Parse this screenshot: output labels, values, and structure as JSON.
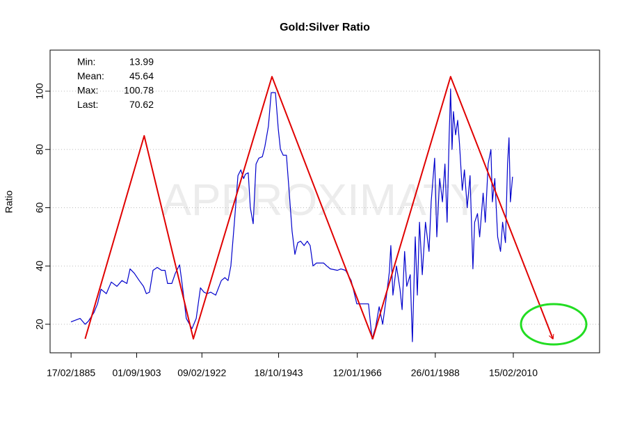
{
  "chart_data": {
    "type": "line",
    "title": "Gold:Silver Ratio",
    "ylabel": "Ratio",
    "watermark": "APPROXIMATY",
    "stats": [
      {
        "label": "Min:",
        "value": 13.99
      },
      {
        "label": "Mean:",
        "value": 45.64
      },
      {
        "label": "Max:",
        "value": 100.78
      },
      {
        "label": "Last:",
        "value": 70.62
      }
    ],
    "xlim": [
      1879.2,
      2034.5
    ],
    "ylim": [
      10.2,
      114.1
    ],
    "xticks": [
      {
        "value": 1885.13,
        "label": "17/02/1885"
      },
      {
        "value": 1903.67,
        "label": "01/09/1903"
      },
      {
        "value": 1922.11,
        "label": "09/02/1922"
      },
      {
        "value": 1943.79,
        "label": "18/10/1943"
      },
      {
        "value": 1966.03,
        "label": "12/01/1966"
      },
      {
        "value": 1988.07,
        "label": "26/01/1988"
      },
      {
        "value": 2010.12,
        "label": "15/02/2010"
      }
    ],
    "yticks": [
      20,
      40,
      60,
      80,
      100
    ],
    "grid": true,
    "series": [
      {
        "color": "#0000cc",
        "x": [
          1885.1,
          1887.7,
          1889.1,
          1890.0,
          1891.6,
          1892.6,
          1893.6,
          1895.1,
          1896.5,
          1898.1,
          1899.5,
          1900.9,
          1901.8,
          1903.0,
          1904.4,
          1905.6,
          1906.4,
          1907.3,
          1908.3,
          1909.5,
          1910.7,
          1911.7,
          1912.4,
          1913.6,
          1914.6,
          1915.8,
          1916.6,
          1917.7,
          1919.3,
          1920.5,
          1921.7,
          1922.7,
          1923.6,
          1924.6,
          1926.0,
          1927.6,
          1928.6,
          1929.5,
          1930.3,
          1931.3,
          1932.3,
          1933.1,
          1933.9,
          1934.4,
          1935.2,
          1935.8,
          1936.6,
          1937.4,
          1938.2,
          1939.2,
          1939.9,
          1940.9,
          1941.7,
          1942.9,
          1943.7,
          1944.3,
          1945.1,
          1946.0,
          1946.8,
          1947.6,
          1948.4,
          1949.2,
          1950.0,
          1951.0,
          1951.9,
          1952.7,
          1953.5,
          1954.5,
          1956.5,
          1957.4,
          1958.4,
          1960.4,
          1961.4,
          1962.7,
          1964.3,
          1965.3,
          1965.9,
          1967.3,
          1969.2,
          1970.2,
          1971.2,
          1972.2,
          1973.2,
          1974.1,
          1975.1,
          1975.5,
          1976.1,
          1977.1,
          1978.1,
          1978.7,
          1979.4,
          1980.0,
          1981.0,
          1981.6,
          1982.4,
          1983.0,
          1983.6,
          1984.4,
          1985.3,
          1986.3,
          1986.9,
          1987.9,
          1988.5,
          1989.3,
          1990.1,
          1990.8,
          1991.4,
          1992.0,
          1992.4,
          1992.8,
          1993.2,
          1993.8,
          1994.4,
          1994.9,
          1995.7,
          1996.3,
          1997.1,
          1997.9,
          1998.7,
          1999.2,
          2000.0,
          2000.6,
          2001.6,
          2002.2,
          2003.0,
          2003.8,
          2004.2,
          2004.9,
          2005.7,
          2006.5,
          2007.1,
          2007.9,
          2008.5,
          2008.9,
          2009.3,
          2009.9
        ],
        "values": [
          20.8,
          22,
          20,
          21,
          24,
          27,
          32,
          30.5,
          34.5,
          33,
          35,
          34,
          39,
          37.5,
          35,
          33,
          30.5,
          31,
          38.5,
          39.5,
          38.5,
          38.5,
          34,
          34,
          37.5,
          40.4,
          33,
          22,
          18.5,
          22,
          32.5,
          31,
          30.5,
          31,
          30,
          35,
          36,
          35,
          40,
          55,
          71,
          73,
          70,
          71.5,
          72,
          60,
          54.5,
          75,
          77,
          77.5,
          81,
          88,
          99.5,
          99.5,
          87,
          80,
          78,
          78,
          65,
          52,
          44,
          48,
          48.5,
          47,
          48.5,
          47,
          40,
          41,
          41,
          40,
          39,
          38.5,
          39,
          38.5,
          35,
          30,
          27,
          27,
          27,
          15,
          19,
          26,
          20,
          28,
          38,
          47,
          30,
          40,
          32,
          25,
          45,
          33,
          37,
          13.99,
          50,
          30,
          55,
          37,
          55,
          45,
          62,
          77,
          50,
          70,
          62,
          75,
          55,
          85,
          100.78,
          80,
          93,
          85,
          90,
          82,
          66,
          73,
          60,
          71,
          39,
          55,
          58,
          50,
          65,
          55,
          75,
          80,
          62,
          70,
          50,
          45,
          55,
          48,
          75,
          84,
          62,
          70.62
        ]
      },
      {
        "color": "#e00000",
        "x": [
          1889.1,
          1905.8,
          1919.7,
          1941.9,
          1970.4,
          1992.4,
          2021.3
        ],
        "values": [
          15.0,
          84.7,
          15.0,
          105.0,
          15.0,
          105.0,
          15.0
        ]
      }
    ]
  }
}
